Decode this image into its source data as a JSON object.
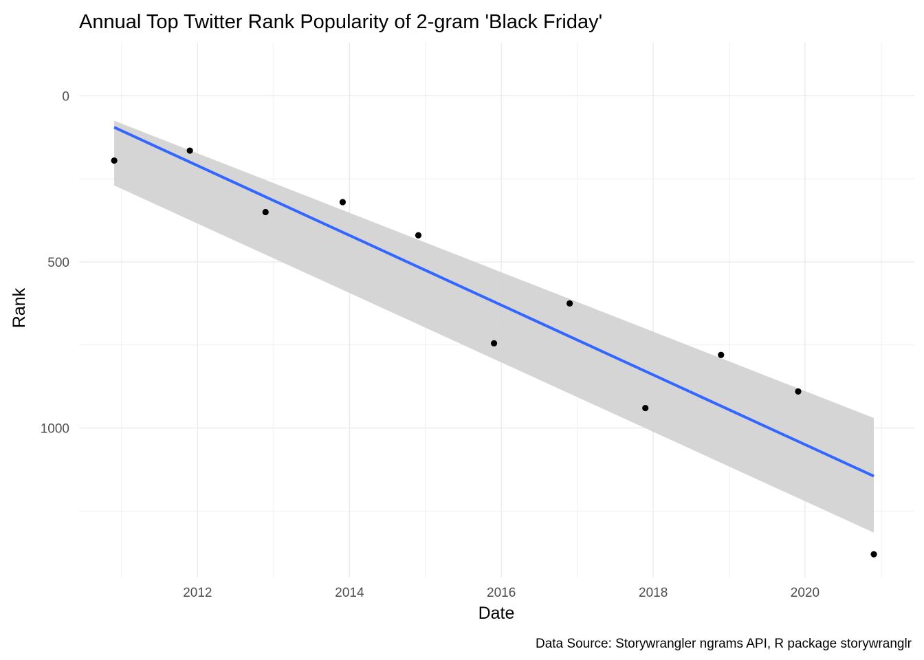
{
  "chart_data": {
    "type": "scatter",
    "title": "Annual Top Twitter Rank Popularity of 2-gram 'Black Friday'",
    "xlabel": "Date",
    "ylabel": "Rank",
    "caption": "Data Source: Storywrangler ngrams API, R package storywranglr",
    "x_axis": {
      "kind": "date",
      "range": [
        "2010-06-10",
        "2021-06-10"
      ],
      "ticks": [
        {
          "value": "2012-01-01",
          "label": "2012"
        },
        {
          "value": "2014-01-01",
          "label": "2014"
        },
        {
          "value": "2016-01-01",
          "label": "2016"
        },
        {
          "value": "2018-01-01",
          "label": "2018"
        },
        {
          "value": "2020-01-01",
          "label": "2020"
        }
      ]
    },
    "y_axis": {
      "reversed": true,
      "range": [
        -160,
        1450
      ],
      "ticks": [
        {
          "value": 0,
          "label": "0"
        },
        {
          "value": 500,
          "label": "500"
        },
        {
          "value": 1000,
          "label": "1000"
        }
      ]
    },
    "grid": true,
    "points": [
      {
        "x": "2010-11-26",
        "y": 195
      },
      {
        "x": "2011-11-25",
        "y": 165
      },
      {
        "x": "2012-11-23",
        "y": 350
      },
      {
        "x": "2013-11-29",
        "y": 320
      },
      {
        "x": "2014-11-28",
        "y": 420
      },
      {
        "x": "2015-11-27",
        "y": 745
      },
      {
        "x": "2016-11-25",
        "y": 625
      },
      {
        "x": "2017-11-24",
        "y": 940
      },
      {
        "x": "2018-11-23",
        "y": 780
      },
      {
        "x": "2019-11-29",
        "y": 890
      },
      {
        "x": "2020-11-27",
        "y": 1380
      }
    ],
    "trend": {
      "method": "linear",
      "color": "#3366ff",
      "band_color": "#d3d3d3",
      "from": {
        "x": "2010-11-26",
        "fit": 95,
        "lower": 75,
        "upper": 270
      },
      "to": {
        "x": "2020-11-27",
        "fit": 1145,
        "lower": 970,
        "upper": 1315
      }
    },
    "colors": {
      "point": "#000000",
      "grid": "#ebebeb"
    }
  }
}
